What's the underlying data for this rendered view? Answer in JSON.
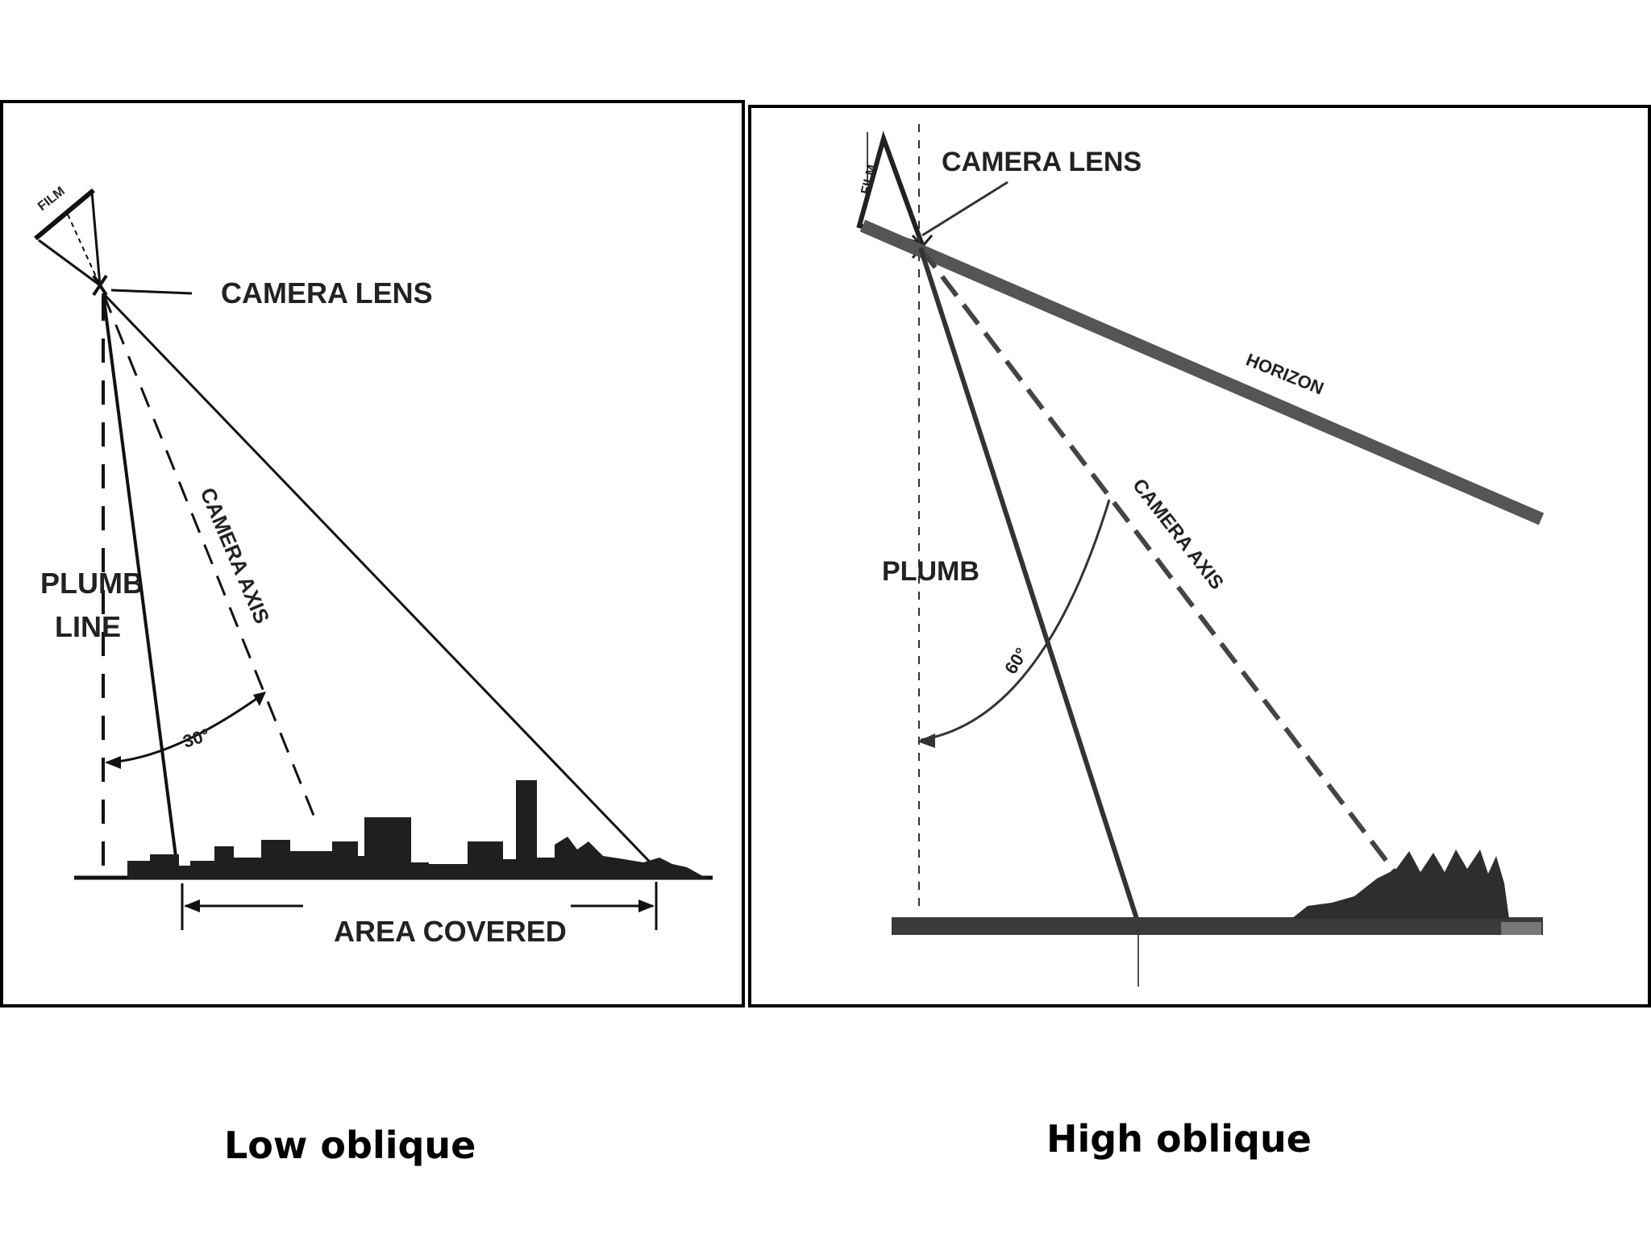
{
  "low_oblique": {
    "film_label": "FILM",
    "camera_lens_label": "CAMERA LENS",
    "plumb_label_line1": "PLUMB",
    "plumb_label_line2": "LINE",
    "camera_axis_label": "CAMERA AXIS",
    "angle_label": "30°",
    "area_label": "AREA COVERED",
    "caption": "Low oblique"
  },
  "high_oblique": {
    "film_label": "FILM",
    "camera_lens_label": "CAMERA LENS",
    "horizon_label": "HORIZON",
    "camera_axis_label": "CAMERA AXIS",
    "plumb_label": "PLUMB",
    "angle_label": "60°",
    "caption": "High oblique"
  }
}
